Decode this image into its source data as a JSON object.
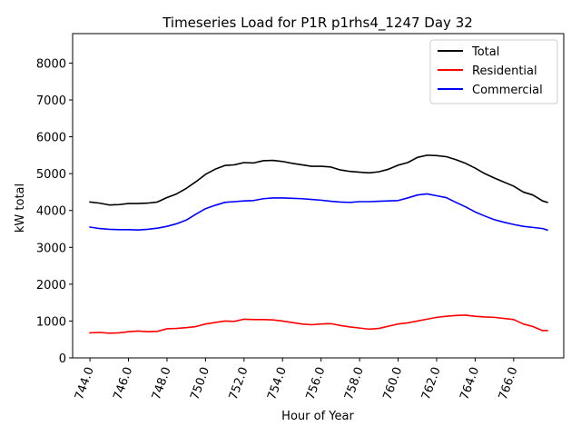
{
  "chart_data": {
    "type": "line",
    "title": "Timeseries Load for P1R p1rhs4_1247  Day 32",
    "xlabel": "Hour of Year",
    "ylabel": "kW total",
    "xlim": [
      743.1,
      768.6
    ],
    "ylim": [
      0,
      8800
    ],
    "x_ticks": [
      744.0,
      746.0,
      748.0,
      750.0,
      752.0,
      754.0,
      756.0,
      758.0,
      760.0,
      762.0,
      764.0,
      766.0
    ],
    "x_tick_labels": [
      "744.0",
      "746.0",
      "748.0",
      "750.0",
      "752.0",
      "754.0",
      "756.0",
      "758.0",
      "760.0",
      "762.0",
      "764.0",
      "766.0"
    ],
    "y_ticks": [
      0,
      1000,
      2000,
      3000,
      4000,
      5000,
      6000,
      7000,
      8000
    ],
    "y_tick_labels": [
      "0",
      "1000",
      "2000",
      "3000",
      "4000",
      "5000",
      "6000",
      "7000",
      "8000"
    ],
    "legend_position": "top-right",
    "grid": false,
    "x": [
      744.0,
      744.5,
      745.0,
      745.5,
      746.0,
      746.5,
      747.0,
      747.5,
      748.0,
      748.5,
      749.0,
      749.5,
      750.0,
      750.5,
      751.0,
      751.5,
      752.0,
      752.5,
      753.0,
      753.5,
      754.0,
      754.5,
      755.0,
      755.5,
      756.0,
      756.5,
      757.0,
      757.5,
      758.0,
      758.5,
      759.0,
      759.5,
      760.0,
      760.5,
      761.0,
      761.5,
      762.0,
      762.5,
      763.0,
      763.5,
      764.0,
      764.5,
      765.0,
      765.5,
      766.0,
      766.5,
      767.0,
      767.5,
      767.75
    ],
    "series": [
      {
        "name": "Total",
        "color": "#000000",
        "values": [
          4230,
          4200,
          4150,
          4160,
          4190,
          4190,
          4200,
          4230,
          4350,
          4450,
          4600,
          4780,
          4980,
          5120,
          5220,
          5240,
          5300,
          5290,
          5350,
          5360,
          5330,
          5280,
          5240,
          5200,
          5200,
          5180,
          5100,
          5060,
          5040,
          5020,
          5050,
          5120,
          5230,
          5300,
          5440,
          5500,
          5490,
          5460,
          5380,
          5280,
          5150,
          5000,
          4880,
          4770,
          4660,
          4500,
          4420,
          4260,
          4220
        ]
      },
      {
        "name": "Residential",
        "color": "#ff0000",
        "values": [
          680,
          690,
          670,
          680,
          710,
          730,
          710,
          720,
          790,
          800,
          820,
          850,
          920,
          960,
          1000,
          990,
          1050,
          1040,
          1040,
          1030,
          1000,
          960,
          920,
          900,
          920,
          930,
          880,
          840,
          810,
          780,
          800,
          860,
          920,
          950,
          1000,
          1050,
          1100,
          1130,
          1150,
          1160,
          1130,
          1110,
          1100,
          1070,
          1040,
          920,
          850,
          740,
          740
        ]
      },
      {
        "name": "Commercial",
        "color": "#0000ff",
        "values": [
          3550,
          3510,
          3490,
          3480,
          3480,
          3470,
          3490,
          3520,
          3570,
          3640,
          3740,
          3900,
          4050,
          4140,
          4220,
          4240,
          4260,
          4270,
          4320,
          4340,
          4340,
          4330,
          4320,
          4300,
          4280,
          4250,
          4230,
          4220,
          4240,
          4240,
          4250,
          4260,
          4270,
          4340,
          4420,
          4450,
          4400,
          4350,
          4220,
          4100,
          3960,
          3850,
          3750,
          3680,
          3620,
          3570,
          3540,
          3510,
          3470
        ]
      }
    ]
  }
}
